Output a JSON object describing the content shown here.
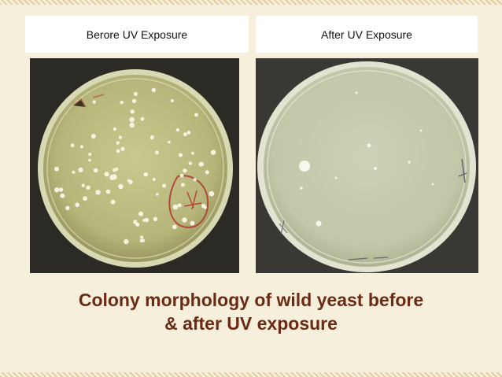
{
  "panels": {
    "before_label": "Berore UV Exposure",
    "after_label": "After UV Exposure"
  },
  "caption": {
    "line1": "Colony morphology of wild yeast before",
    "line2": "& after UV exposure"
  },
  "colors": {
    "background": "#f6efdc",
    "caption": "#6b2a14"
  }
}
